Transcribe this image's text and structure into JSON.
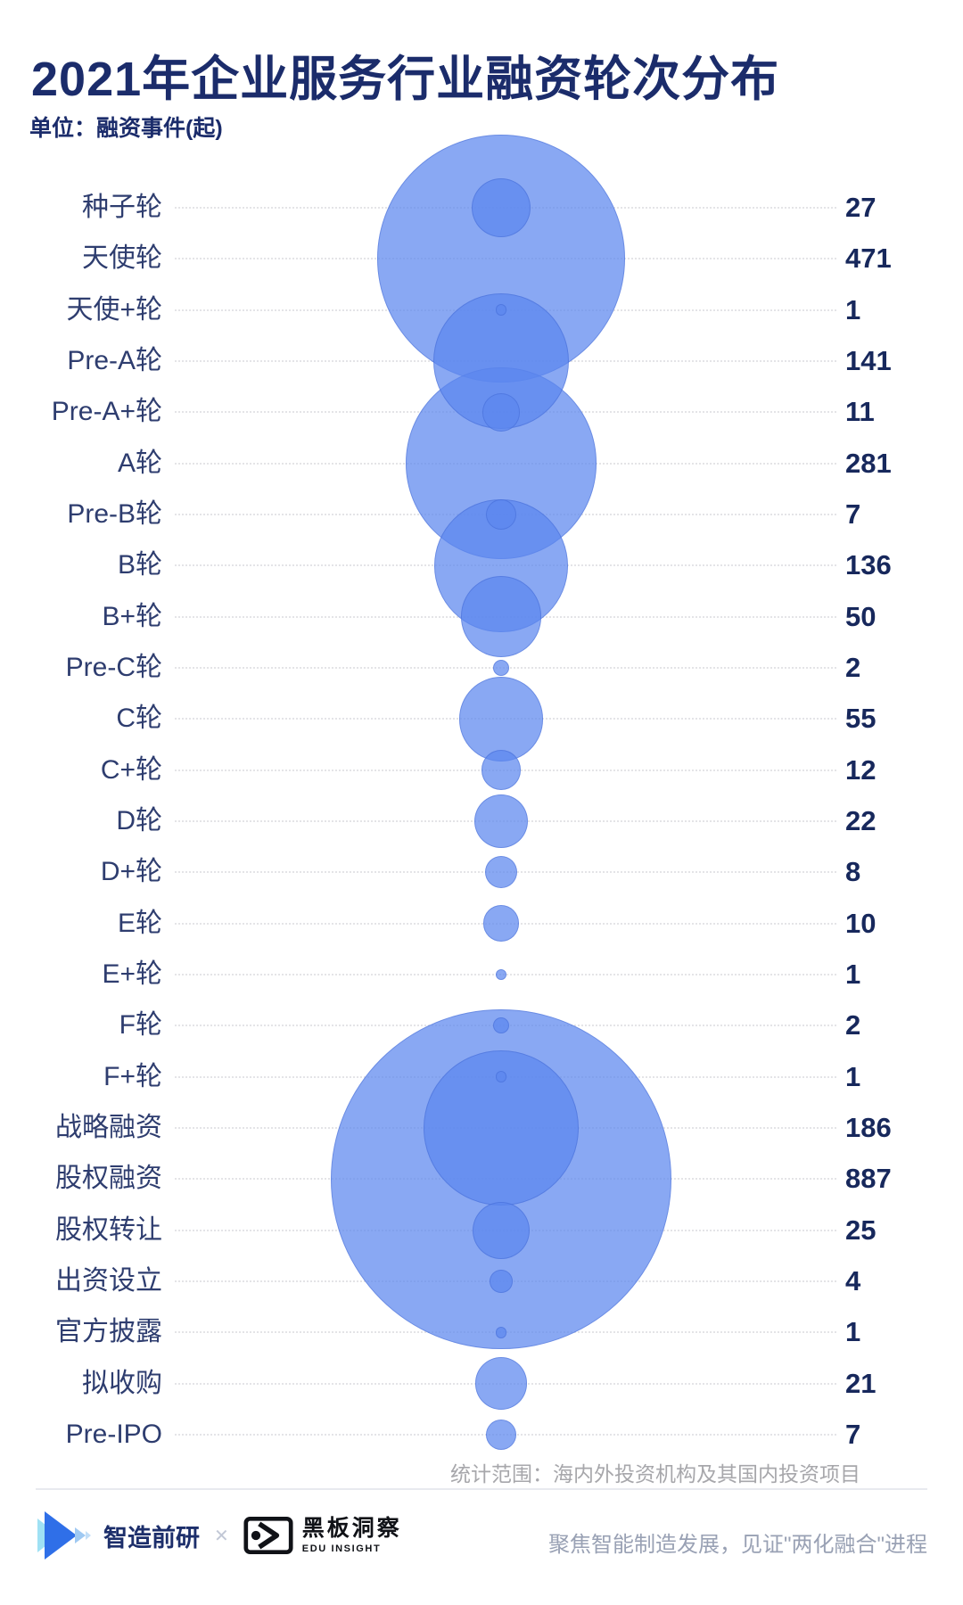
{
  "header": {
    "title": "2021年企业服务行业融资轮次分布",
    "subtitle": "单位：融资事件(起)"
  },
  "chart_data": {
    "type": "bubble",
    "title": "2021年企业服务行业融资轮次分布",
    "unit": "融资事件(起)",
    "categories": [
      "种子轮",
      "天使轮",
      "天使+轮",
      "Pre-A轮",
      "Pre-A+轮",
      "A轮",
      "Pre-B轮",
      "B轮",
      "B+轮",
      "Pre-C轮",
      "C轮",
      "C+轮",
      "D轮",
      "D+轮",
      "E轮",
      "E+轮",
      "F轮",
      "F+轮",
      "战略融资",
      "股权融资",
      "股权转让",
      "出资设立",
      "官方披露",
      "拟收购",
      "Pre-IPO"
    ],
    "values": [
      27,
      471,
      1,
      141,
      11,
      281,
      7,
      136,
      50,
      2,
      55,
      12,
      22,
      8,
      10,
      1,
      2,
      1,
      186,
      887,
      25,
      4,
      1,
      21,
      7
    ],
    "note": "统计范围：海内外投资机构及其国内投资项目",
    "legend_position": "none",
    "grid": "row-leader-lines",
    "colors": {
      "bubble_fill": "#5B86EE",
      "bubble_overlap": "#6E92EF",
      "label_text": "#2E3D6F",
      "value_text": "#17285C",
      "title_text": "#1B2C6B",
      "note_text": "#A7A7AB"
    }
  },
  "footer": {
    "brand_left": "智造前研",
    "separator": "✕",
    "brand_right_cn": "黑板洞察",
    "brand_right_en": "EDU INSIGHT",
    "slogan": "聚焦智能制造发展，见证\"两化融合\"进程"
  },
  "icons": {
    "logo_left": "play-waves-logo",
    "logo_right": "eye-box-logo"
  }
}
